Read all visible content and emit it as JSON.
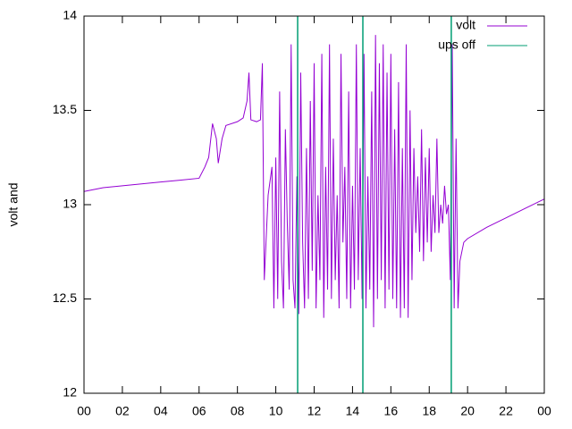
{
  "chart_data": {
    "type": "line",
    "ylabel": "volt and",
    "xlim": [
      0,
      24
    ],
    "xticks": [
      {
        "value": 0,
        "label": "00"
      },
      {
        "value": 2,
        "label": "02"
      },
      {
        "value": 4,
        "label": "04"
      },
      {
        "value": 6,
        "label": "06"
      },
      {
        "value": 8,
        "label": "08"
      },
      10,
      12,
      14,
      16,
      18,
      20,
      22,
      {
        "value": 24,
        "label": "00"
      }
    ],
    "ylim": [
      12,
      14
    ],
    "yticks": [
      12,
      12.5,
      13,
      13.5,
      14
    ],
    "legend": "top-right",
    "series": [
      {
        "name": "volt",
        "color": "#9400d3",
        "style": "line",
        "x": [
          0,
          1,
          2,
          3,
          4,
          5,
          6,
          6.3,
          6.5,
          6.7,
          6.9,
          7,
          7.2,
          7.4,
          8,
          8.3,
          8.5,
          8.6,
          8.7,
          9,
          9.2,
          9.3,
          9.4,
          9.6,
          9.8,
          9.9,
          10,
          10.1,
          10.2,
          10.3,
          10.4,
          10.5,
          10.6,
          10.7,
          10.8,
          10.9,
          11,
          11.1,
          11.2,
          11.3,
          11.4,
          11.5,
          11.6,
          11.7,
          11.8,
          11.9,
          12,
          12.1,
          12.2,
          12.3,
          12.4,
          12.5,
          12.6,
          12.7,
          12.8,
          12.9,
          13,
          13.1,
          13.2,
          13.3,
          13.4,
          13.5,
          13.6,
          13.7,
          13.8,
          13.9,
          14,
          14.1,
          14.2,
          14.3,
          14.4,
          14.5,
          14.6,
          14.7,
          14.8,
          14.9,
          15,
          15.1,
          15.2,
          15.3,
          15.4,
          15.5,
          15.6,
          15.7,
          15.8,
          15.9,
          16,
          16.1,
          16.2,
          16.3,
          16.4,
          16.5,
          16.6,
          16.7,
          16.8,
          16.9,
          17,
          17.1,
          17.2,
          17.3,
          17.4,
          17.5,
          17.6,
          17.7,
          17.8,
          17.9,
          18,
          18.1,
          18.2,
          18.3,
          18.4,
          18.5,
          18.6,
          18.7,
          18.8,
          18.9,
          19,
          19.1,
          19.2,
          19.3,
          19.4,
          19.5,
          19.6,
          19.8,
          20,
          21,
          22,
          23,
          24
        ],
        "values": [
          13.07,
          13.09,
          13.1,
          13.11,
          13.12,
          13.13,
          13.14,
          13.2,
          13.25,
          13.43,
          13.35,
          13.22,
          13.35,
          13.42,
          13.44,
          13.46,
          13.55,
          13.7,
          13.45,
          13.44,
          13.45,
          13.75,
          12.6,
          13.05,
          13.2,
          12.45,
          13.25,
          12.5,
          13.6,
          12.7,
          12.45,
          13.4,
          12.9,
          12.55,
          13.85,
          12.6,
          12.45,
          13.15,
          12.42,
          13.7,
          12.8,
          12.45,
          13.3,
          12.5,
          13.55,
          12.65,
          13.75,
          12.45,
          13.05,
          12.6,
          13.8,
          12.4,
          13.2,
          12.55,
          13.85,
          12.5,
          13.35,
          12.6,
          13.05,
          12.45,
          13.8,
          12.8,
          13.2,
          12.5,
          13.6,
          12.45,
          13.1,
          12.55,
          13.85,
          12.6,
          13.3,
          12.5,
          13.8,
          12.45,
          13.15,
          12.55,
          13.6,
          12.35,
          13.9,
          12.5,
          13.75,
          12.6,
          13.85,
          12.45,
          13.7,
          12.55,
          13.8,
          12.5,
          13.4,
          12.45,
          13.65,
          12.4,
          13.3,
          12.45,
          13.85,
          12.4,
          13.5,
          12.6,
          13.3,
          12.85,
          13.15,
          12.75,
          13.4,
          12.7,
          13.25,
          12.8,
          13.3,
          12.75,
          13.05,
          12.85,
          13.35,
          12.85,
          13,
          12.9,
          13.1,
          12.95,
          13,
          12.6,
          13.85,
          12.45,
          13.35,
          12.45,
          12.7,
          12.8,
          12.82,
          12.88,
          12.93,
          12.98,
          13.03
        ]
      },
      {
        "name": "ups off",
        "color": "#009e73",
        "style": "impulses",
        "x": [
          11.14,
          14.54,
          19.15
        ],
        "values": [
          14,
          14,
          14
        ]
      }
    ]
  }
}
